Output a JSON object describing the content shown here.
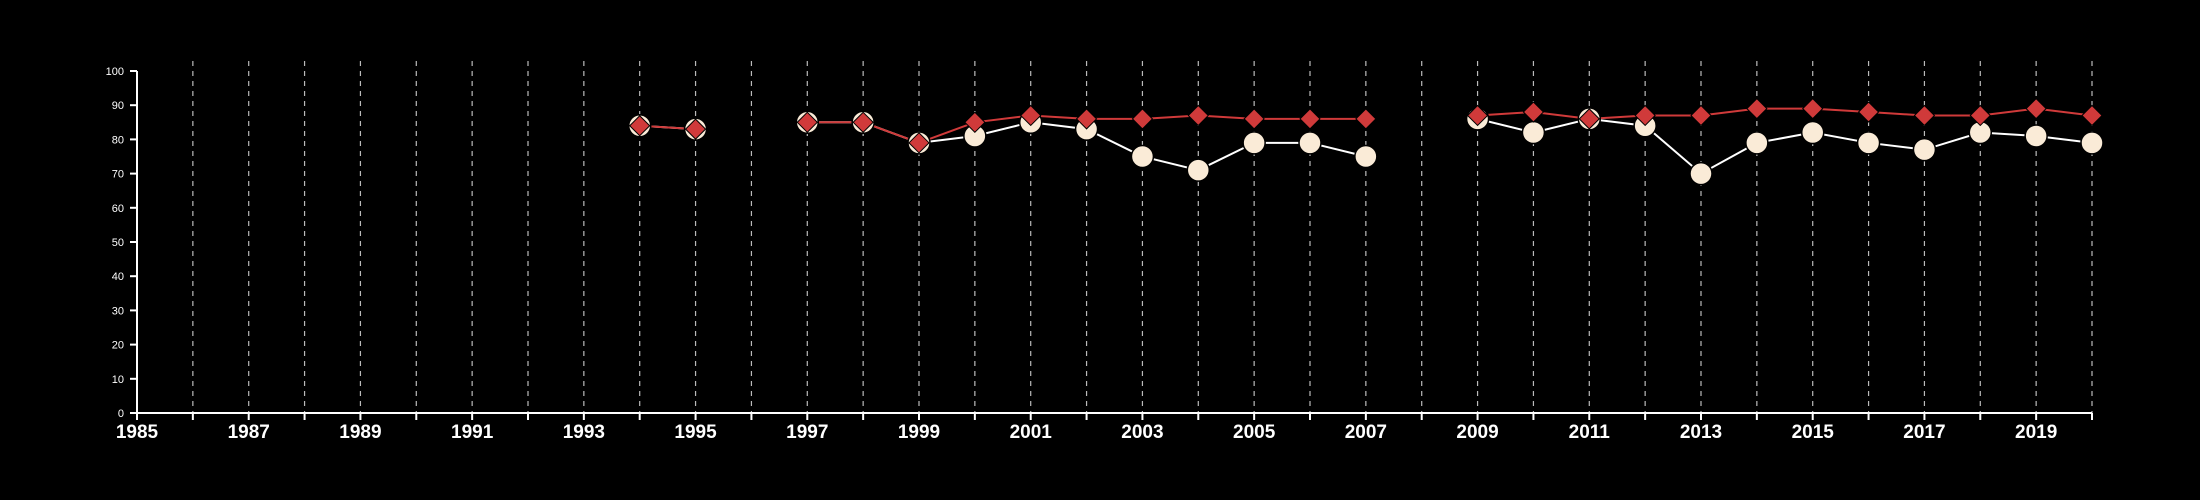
{
  "chart_data": {
    "type": "line",
    "title": "",
    "xlabel": "",
    "ylabel": "",
    "xlim": [
      1985,
      2020
    ],
    "ylim": [
      0,
      100
    ],
    "y_ticks": [
      0,
      10,
      20,
      30,
      40,
      50,
      60,
      70,
      80,
      90,
      100
    ],
    "x_tick_labels": [
      1985,
      1987,
      1989,
      1991,
      1993,
      1995,
      1997,
      1999,
      2001,
      2003,
      2005,
      2007,
      2009,
      2011,
      2013,
      2015,
      2017,
      2019
    ],
    "vertical_gridlines": "dashed, every year",
    "legend": "none",
    "series": [
      {
        "marker": "circle",
        "color": "#faebd7",
        "line_color": "#ffffff",
        "x": [
          1994,
          1995,
          1997,
          1998,
          1999,
          2000,
          2001,
          2002,
          2003,
          2004,
          2005,
          2006,
          2007,
          2009,
          2010,
          2011,
          2012,
          2013,
          2014,
          2015,
          2016,
          2017,
          2018,
          2019,
          2020
        ],
        "y": [
          84,
          83,
          85,
          85,
          79,
          81,
          85,
          83,
          75,
          71,
          79,
          79,
          75,
          86,
          82,
          86,
          84,
          70,
          79,
          82,
          79,
          77,
          82,
          81,
          79
        ]
      },
      {
        "marker": "diamond",
        "color": "#d03a3a",
        "line_color": "#d03a3a",
        "x": [
          1994,
          1995,
          1997,
          1998,
          1999,
          2000,
          2001,
          2002,
          2003,
          2004,
          2005,
          2006,
          2007,
          2009,
          2010,
          2011,
          2012,
          2013,
          2014,
          2015,
          2016,
          2017,
          2018,
          2019,
          2020
        ],
        "y": [
          84,
          83,
          85,
          85,
          79,
          85,
          87,
          86,
          86,
          87,
          86,
          86,
          86,
          87,
          88,
          86,
          87,
          87,
          89,
          89,
          88,
          87,
          87,
          89,
          87
        ]
      }
    ]
  }
}
